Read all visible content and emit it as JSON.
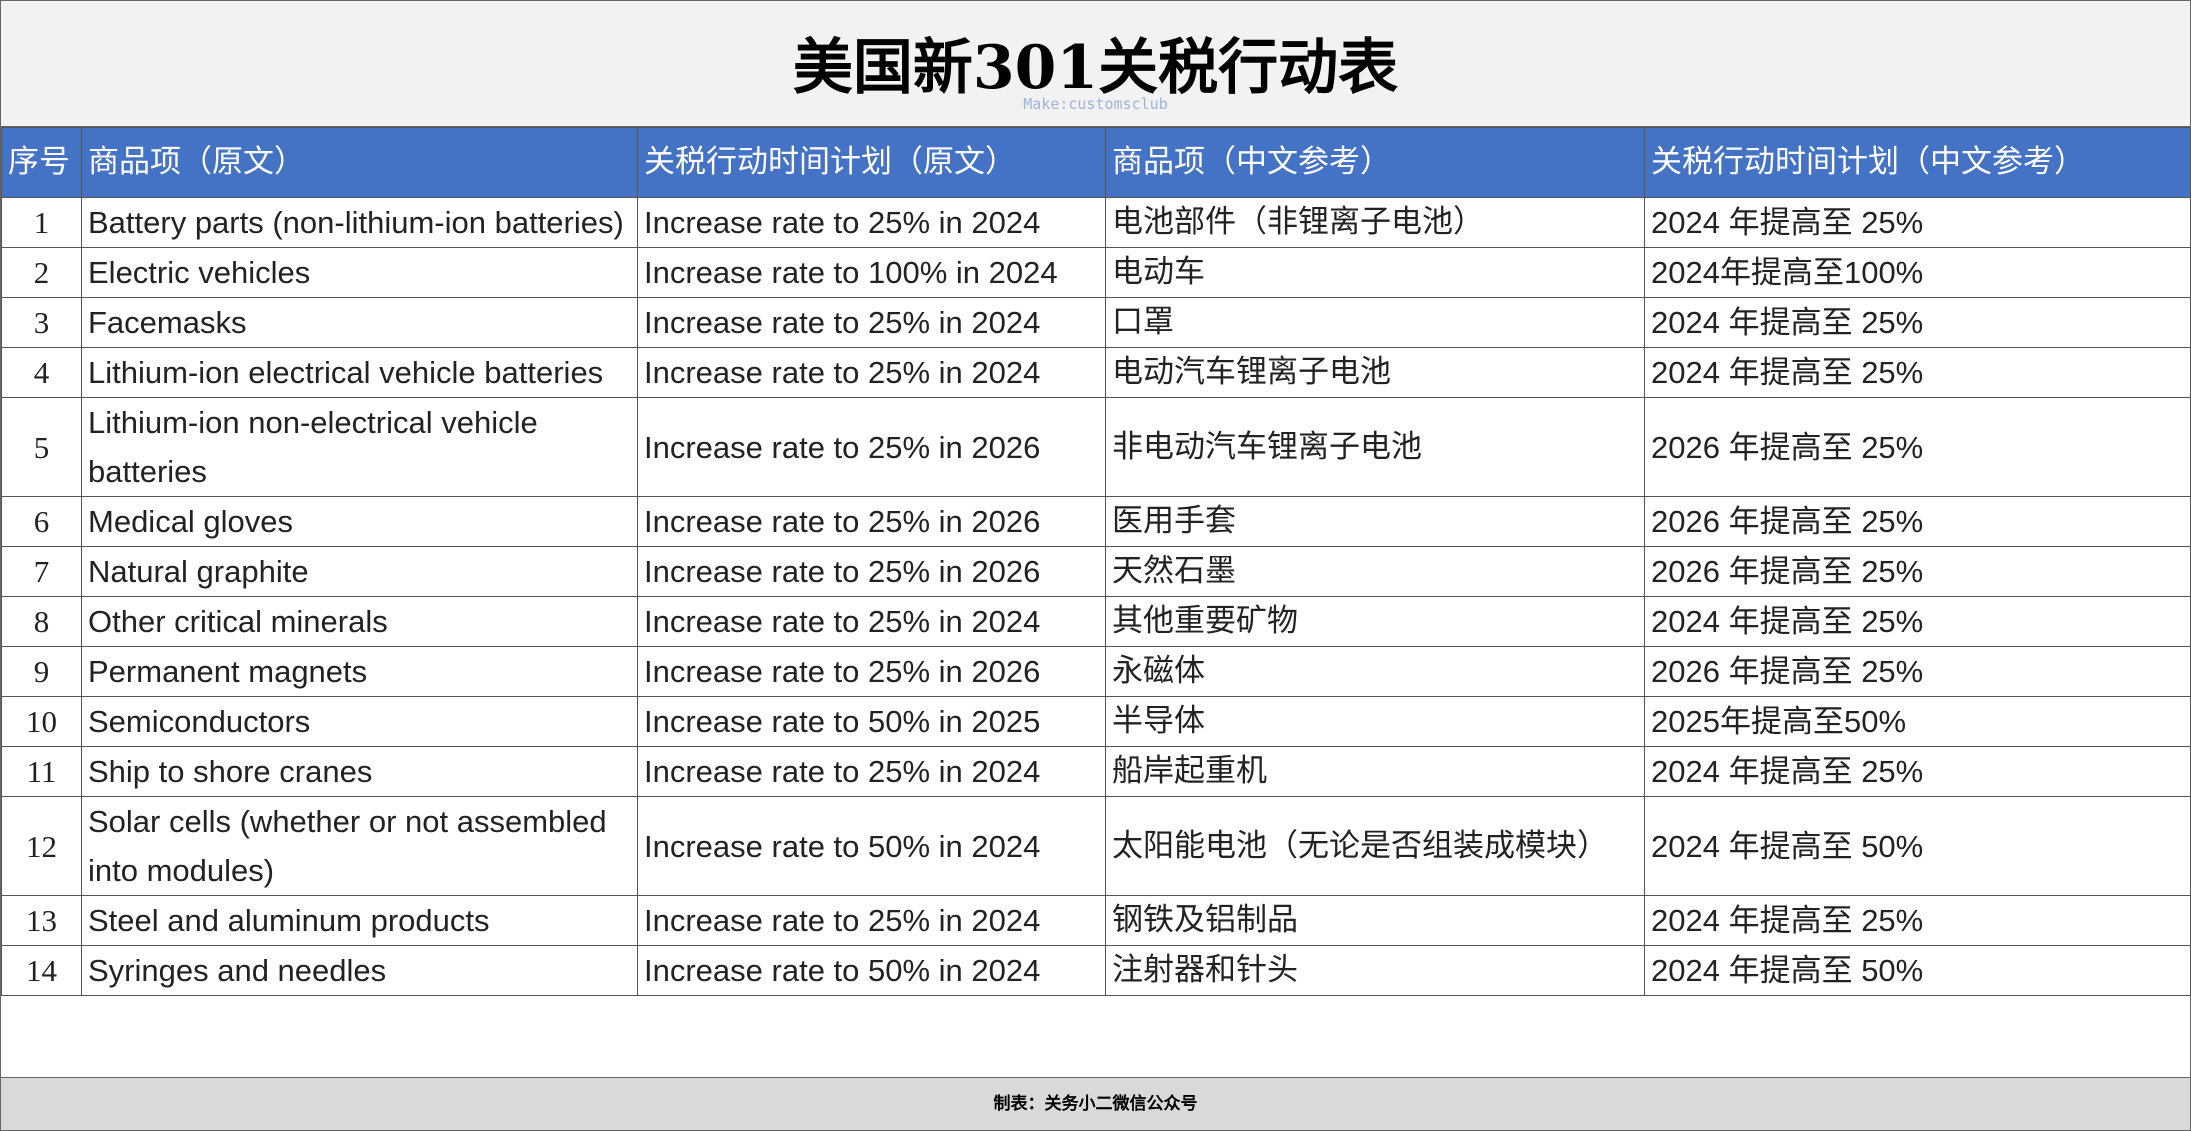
{
  "header": {
    "title": "美国新301关税行动表",
    "subtitle": "Make:customsclub"
  },
  "table": {
    "columns": [
      "序号",
      "商品项（原文）",
      "关税行动时间计划（原文）",
      "商品项（中文参考）",
      "关税行动时间计划（中文参考）"
    ],
    "rows": [
      [
        "1",
        "Battery parts (non-lithium-ion batteries)",
        "Increase rate to 25% in 2024",
        "电池部件（非锂离子电池）",
        "2024 年提高至 25%"
      ],
      [
        "2",
        "Electric vehicles",
        "Increase rate to 100% in 2024",
        "电动车",
        "2024年提高至100%"
      ],
      [
        "3",
        "Facemasks",
        "Increase rate to 25% in 2024",
        "口罩",
        "2024 年提高至 25%"
      ],
      [
        "4",
        "Lithium-ion electrical vehicle batteries",
        "Increase rate to 25% in 2024",
        "电动汽车锂离子电池",
        "2024 年提高至 25%"
      ],
      [
        "5",
        "Lithium-ion non-electrical vehicle batteries",
        "Increase rate to 25% in 2026",
        "非电动汽车锂离子电池",
        "2026 年提高至 25%"
      ],
      [
        "6",
        "Medical gloves",
        "Increase rate to 25% in 2026",
        "医用手套",
        "2026 年提高至 25%"
      ],
      [
        "7",
        "Natural graphite",
        "Increase rate to 25% in 2026",
        "天然石墨",
        "2026 年提高至 25%"
      ],
      [
        "8",
        "Other critical minerals",
        "Increase rate to 25% in 2024",
        "其他重要矿物",
        "2024 年提高至 25%"
      ],
      [
        "9",
        "Permanent magnets",
        "Increase rate to 25% in 2026",
        "永磁体",
        "2026 年提高至 25%"
      ],
      [
        "10",
        "Semiconductors",
        "Increase rate to 50% in 2025",
        "半导体",
        "2025年提高至50%"
      ],
      [
        "11",
        "Ship to shore cranes",
        "Increase rate to 25% in 2024",
        "船岸起重机",
        "2024 年提高至 25%"
      ],
      [
        "12",
        "Solar cells (whether or not assembled into modules)",
        "Increase rate to 50% in 2024",
        "太阳能电池（无论是否组装成模块）",
        "2024 年提高至 50%"
      ],
      [
        "13",
        "Steel and aluminum products",
        "Increase rate to 25% in 2024",
        "钢铁及铝制品",
        "2024 年提高至 25%"
      ],
      [
        "14",
        "Syringes and needles",
        "Increase rate to 50% in 2024",
        "注射器和针头",
        "2024 年提高至 50%"
      ]
    ]
  },
  "footer": {
    "text": "制表：关务小二微信公众号"
  }
}
